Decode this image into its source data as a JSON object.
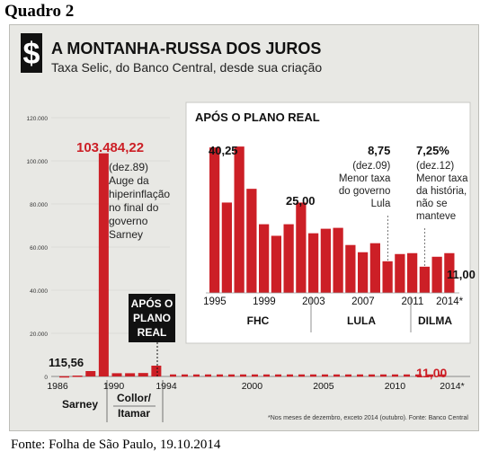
{
  "quadro_label": "Quadro 2",
  "source_caption": "Fonte: Folha de São Paulo, 19.10.2014",
  "header": {
    "title": "A MONTANHA-RUSSA DOS JUROS",
    "subtitle": "Taxa Selic, do Banco Central, desde sua criação",
    "icon": "dollar-sign-icon"
  },
  "footnote": "*Nos meses de dezembro, exceto 2014 (outubro). Fonte: Banco Central",
  "colors": {
    "bar": "#cc1f26",
    "highlight": "#cc1f26",
    "frame": "#e8e8e4",
    "badge": "#111111"
  },
  "annotations": {
    "peak_value": "103.484,22",
    "peak_note": [
      "(dez.89)",
      "Auge da",
      "hiperinflação",
      "no final do",
      "governo",
      "Sarney"
    ],
    "first_value": "115,56",
    "plano_real_badge": [
      "APÓS O",
      "PLANO",
      "REAL"
    ],
    "last_value": "11,00"
  },
  "chart_data": [
    {
      "type": "bar",
      "x": [
        "1986",
        "1987",
        "1988",
        "1989",
        "1990",
        "1991",
        "1992",
        "1993"
      ],
      "values": [
        115.56,
        400,
        2500,
        103484.22,
        1500,
        1500,
        1600,
        5000
      ],
      "ylim": [
        0,
        120000
      ],
      "yticks": [
        0,
        20000,
        40000,
        60000,
        80000,
        100000,
        120000
      ],
      "ytick_labels": [
        "0",
        "20.000",
        "40.000",
        "60.000",
        "80.000",
        "100.000",
        "120.000"
      ],
      "xtick_labels": [
        "1986",
        "1990",
        "1994",
        "2000",
        "2005",
        "2010",
        "2014*"
      ],
      "period_labels": [
        "Sarney",
        "Collor/ Itamar"
      ],
      "continuation_series": "1994–2014 (near zero at this scale)"
    },
    {
      "type": "bar",
      "title": "APÓS O PLANO REAL",
      "categories": [
        "1995",
        "1996",
        "1997",
        "1998",
        "1999",
        "2000",
        "2001",
        "2002",
        "2003",
        "2004",
        "2005",
        "2006",
        "2007",
        "2008",
        "2009",
        "2010",
        "2011",
        "2012",
        "2013",
        "2014*"
      ],
      "values": [
        40.25,
        25,
        40.5,
        28.8,
        19,
        15.8,
        19,
        25.0,
        16.5,
        17.75,
        18,
        13.25,
        11.25,
        13.75,
        8.75,
        10.75,
        11,
        7.25,
        10,
        11.0
      ],
      "ylim": [
        0,
        45
      ],
      "xtick_labels": [
        "1995",
        "1999",
        "2003",
        "2007",
        "2011",
        "2014*"
      ],
      "period_labels": [
        "FHC",
        "LULA",
        "DILMA"
      ],
      "annotations": [
        {
          "value": "40,25"
        },
        {
          "value": "25,00"
        },
        {
          "value": "8,75",
          "note": [
            "(dez.09)",
            "Menor taxa",
            "do governo",
            "Lula"
          ]
        },
        {
          "value": "7,25%",
          "note": [
            "(dez.12)",
            "Menor taxa",
            "da história,",
            "não se",
            "manteve"
          ]
        },
        {
          "value": "11,00"
        }
      ]
    }
  ]
}
